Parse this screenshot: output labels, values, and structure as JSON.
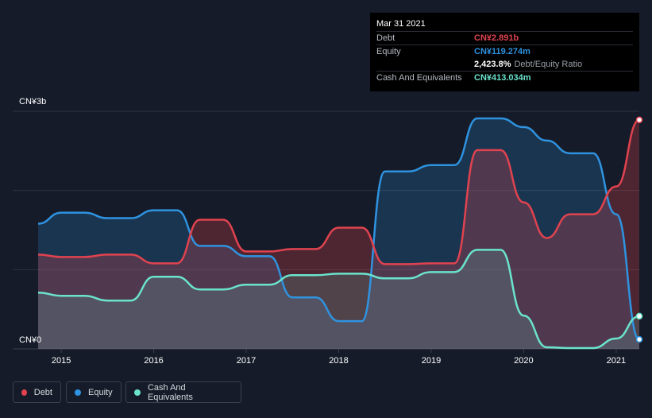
{
  "colors": {
    "debt": "#e0434f",
    "equity": "#2f93e0",
    "cash": "#6be3cc",
    "grid": "#2e3440",
    "background": "#151b28"
  },
  "tooltip": {
    "date": "Mar 31 2021",
    "debt_label": "Debt",
    "debt_value": "CN¥2.891b",
    "equity_label": "Equity",
    "equity_value": "CN¥119.274m",
    "ratio_value": "2,423.8%",
    "ratio_label": "Debt/Equity Ratio",
    "cash_label": "Cash And Equivalents",
    "cash_value": "CN¥413.034m"
  },
  "legend": {
    "debt": "Debt",
    "equity": "Equity",
    "cash": "Cash And Equivalents"
  },
  "chart_data": {
    "type": "area",
    "title": "",
    "xlabel": "",
    "ylabel": "",
    "y_top_label": "CN¥3b",
    "y_bottom_label": "CN¥0",
    "ylim": [
      0,
      3.0
    ],
    "xlim": [
      2014.6,
      2021.25
    ],
    "x_ticks": [
      2015,
      2016,
      2017,
      2018,
      2019,
      2020,
      2021
    ],
    "x_tick_labels": [
      "2015",
      "2016",
      "2017",
      "2018",
      "2019",
      "2020",
      "2021"
    ],
    "series": [
      {
        "name": "Debt",
        "unit": "CN¥ billions",
        "points": [
          [
            2014.75,
            1.19
          ],
          [
            2015.0,
            1.16
          ],
          [
            2015.25,
            1.16
          ],
          [
            2015.5,
            1.19
          ],
          [
            2015.75,
            1.19
          ],
          [
            2016.0,
            1.08
          ],
          [
            2016.25,
            1.08
          ],
          [
            2016.5,
            1.63
          ],
          [
            2016.75,
            1.63
          ],
          [
            2017.0,
            1.23
          ],
          [
            2017.25,
            1.23
          ],
          [
            2017.5,
            1.26
          ],
          [
            2017.75,
            1.26
          ],
          [
            2018.0,
            1.53
          ],
          [
            2018.25,
            1.53
          ],
          [
            2018.5,
            1.07
          ],
          [
            2018.75,
            1.07
          ],
          [
            2019.0,
            1.08
          ],
          [
            2019.25,
            1.08
          ],
          [
            2019.5,
            2.51
          ],
          [
            2019.75,
            2.51
          ],
          [
            2020.0,
            1.85
          ],
          [
            2020.25,
            1.4
          ],
          [
            2020.5,
            1.7
          ],
          [
            2020.75,
            1.7
          ],
          [
            2021.0,
            2.05
          ],
          [
            2021.25,
            2.891
          ]
        ]
      },
      {
        "name": "Equity",
        "unit": "CN¥ billions",
        "points": [
          [
            2014.75,
            1.58
          ],
          [
            2015.0,
            1.72
          ],
          [
            2015.25,
            1.72
          ],
          [
            2015.5,
            1.65
          ],
          [
            2015.75,
            1.65
          ],
          [
            2016.0,
            1.75
          ],
          [
            2016.25,
            1.75
          ],
          [
            2016.5,
            1.3
          ],
          [
            2016.75,
            1.3
          ],
          [
            2017.0,
            1.17
          ],
          [
            2017.25,
            1.17
          ],
          [
            2017.5,
            0.65
          ],
          [
            2017.75,
            0.65
          ],
          [
            2018.0,
            0.35
          ],
          [
            2018.25,
            0.35
          ],
          [
            2018.5,
            2.24
          ],
          [
            2018.75,
            2.24
          ],
          [
            2019.0,
            2.32
          ],
          [
            2019.25,
            2.32
          ],
          [
            2019.5,
            2.91
          ],
          [
            2019.75,
            2.91
          ],
          [
            2020.0,
            2.8
          ],
          [
            2020.25,
            2.63
          ],
          [
            2020.5,
            2.47
          ],
          [
            2020.75,
            2.47
          ],
          [
            2021.0,
            1.7
          ],
          [
            2021.25,
            0.119274
          ]
        ]
      },
      {
        "name": "Cash And Equivalents",
        "unit": "CN¥ billions",
        "points": [
          [
            2014.75,
            0.71
          ],
          [
            2015.0,
            0.67
          ],
          [
            2015.25,
            0.67
          ],
          [
            2015.5,
            0.61
          ],
          [
            2015.75,
            0.61
          ],
          [
            2016.0,
            0.91
          ],
          [
            2016.25,
            0.91
          ],
          [
            2016.5,
            0.75
          ],
          [
            2016.75,
            0.75
          ],
          [
            2017.0,
            0.81
          ],
          [
            2017.25,
            0.81
          ],
          [
            2017.5,
            0.93
          ],
          [
            2017.75,
            0.93
          ],
          [
            2018.0,
            0.95
          ],
          [
            2018.25,
            0.95
          ],
          [
            2018.5,
            0.89
          ],
          [
            2018.75,
            0.89
          ],
          [
            2019.0,
            0.97
          ],
          [
            2019.25,
            0.97
          ],
          [
            2019.5,
            1.25
          ],
          [
            2019.75,
            1.25
          ],
          [
            2020.0,
            0.42
          ],
          [
            2020.25,
            0.02
          ],
          [
            2020.5,
            0.01
          ],
          [
            2020.75,
            0.01
          ],
          [
            2021.0,
            0.13
          ],
          [
            2021.25,
            0.413034
          ]
        ]
      }
    ]
  }
}
